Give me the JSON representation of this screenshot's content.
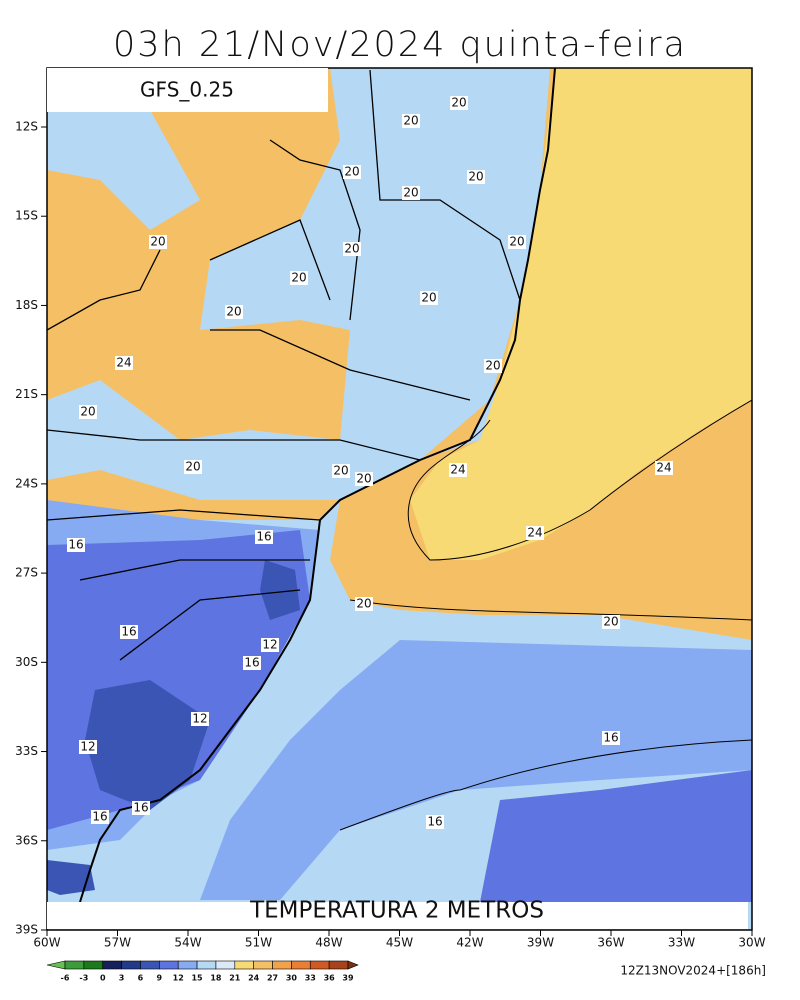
{
  "header": {
    "title": "03h 21/Nov/2024 quinta-feira"
  },
  "map": {
    "model": "GFS_0.25",
    "caption": "TEMPERATURA 2 METROS",
    "run": "12Z13NOV2024+[186h]",
    "lat_labels": [
      "12S",
      "15S",
      "18S",
      "21S",
      "24S",
      "27S",
      "30S",
      "33S",
      "36S",
      "39S"
    ],
    "lon_labels": [
      "60W",
      "57W",
      "54W",
      "51W",
      "48W",
      "45W",
      "42W",
      "39W",
      "36W",
      "33W",
      "30W"
    ],
    "contour_labels": [
      "20",
      "20",
      "20",
      "20",
      "20",
      "20",
      "20",
      "20",
      "20",
      "20",
      "20",
      "20",
      "20",
      "20",
      "20",
      "20",
      "20",
      "20",
      "24",
      "24",
      "24",
      "24",
      "16",
      "16",
      "16",
      "16",
      "16",
      "16",
      "16",
      "16",
      "12",
      "12",
      "12"
    ],
    "colorbar": {
      "ticks": [
        -6,
        -3,
        0,
        3,
        6,
        9,
        12,
        15,
        18,
        21,
        24,
        27,
        30,
        33,
        36,
        39
      ],
      "colors": [
        "#6bbf59",
        "#3a9d3a",
        "#1b7a1b",
        "#16205a",
        "#223a8a",
        "#3b55b4",
        "#5e74e0",
        "#86abf2",
        "#b5d8f5",
        "#dce9f7",
        "#f8da75",
        "#f5c065",
        "#f2a24a",
        "#ea7e34",
        "#d25a22",
        "#a8421a",
        "#7a3010"
      ]
    }
  }
}
